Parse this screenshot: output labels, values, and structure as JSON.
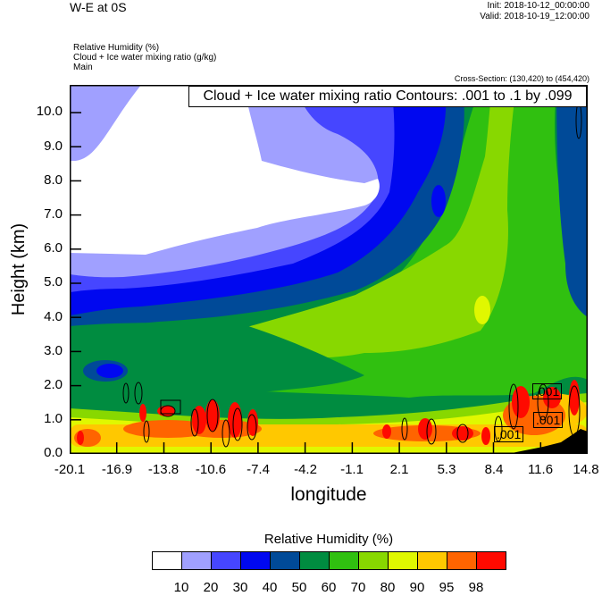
{
  "header": {
    "title": "W-E at 0S",
    "init": "Init: 2018-10-12_00:00:00",
    "valid": "Valid: 2018-10-19_12:00:00",
    "fields": [
      "Relative Humidity   (%)",
      "Cloud + Ice water mixing ratio   (g/kg)",
      "Main"
    ],
    "cross_section": "Cross-Section: (130,420) to (454,420)"
  },
  "chart_data": {
    "type": "heatmap",
    "subtype": "filled contour cross-section with line contours",
    "title": "W-E at 0S",
    "xlabel": "longitude",
    "ylabel": "Height (km)",
    "xlim": [
      -20.1,
      14.8
    ],
    "ylim": [
      0,
      10.8
    ],
    "xticks": [
      "-20.1",
      "-16.9",
      "-13.8",
      "-10.6",
      "-7.4",
      "-4.2",
      "-1.1",
      "2.1",
      "5.3",
      "8.4",
      "11.6",
      "14.8"
    ],
    "yticks": [
      "0.0",
      "1.0",
      "2.0",
      "3.0",
      "4.0",
      "5.0",
      "6.0",
      "7.0",
      "8.0",
      "9.0",
      "10.0"
    ],
    "contour_info": "Cloud + Ice water mixing ratio Contours: .001 to .1 by .099",
    "contour_labels": [
      ".001",
      ".001",
      ".001"
    ],
    "colorbar": {
      "title": "Relative Humidity  (%)",
      "levels": [
        "10",
        "20",
        "30",
        "40",
        "50",
        "60",
        "70",
        "80",
        "90",
        "95",
        "98"
      ],
      "colors": [
        "#ffffff",
        "#a0a0ff",
        "#4646ff",
        "#0008f0",
        "#004a98",
        "#008c40",
        "#30c010",
        "#88d800",
        "#e0f800",
        "#ffc800",
        "#ff6400",
        "#ff0a00"
      ]
    }
  }
}
